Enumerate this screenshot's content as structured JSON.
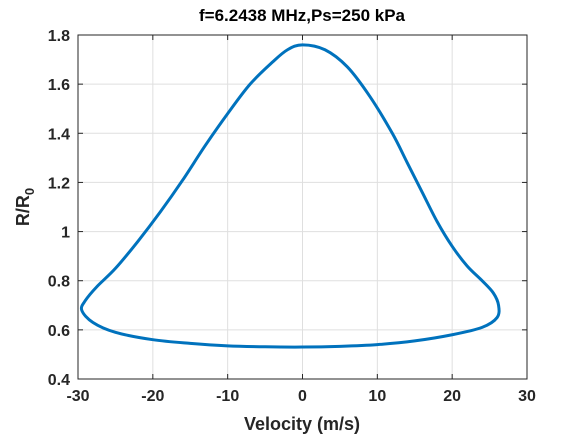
{
  "chart_data": {
    "type": "line",
    "title": "f=6.2438 MHz,Ps=250 kPa",
    "xlabel": "Velocity (m/s)",
    "ylabel_main": "R/R",
    "ylabel_subscript": "0",
    "xlim": [
      -30,
      30
    ],
    "ylim": [
      0.4,
      1.8
    ],
    "xticks": [
      "-30",
      "-20",
      "-10",
      "0",
      "10",
      "20",
      "30"
    ],
    "yticks": [
      "0.4",
      "0.6",
      "0.8",
      "1",
      "1.2",
      "1.4",
      "1.6",
      "1.8"
    ],
    "xtick_values": [
      -30,
      -20,
      -10,
      0,
      10,
      20,
      30
    ],
    "ytick_values": [
      0.4,
      0.6,
      0.8,
      1.0,
      1.2,
      1.4,
      1.6,
      1.8
    ],
    "grid": true,
    "line_color": "#0072bd",
    "series": [
      {
        "x": [
          0,
          3,
          6,
          9,
          12,
          14,
          16,
          18,
          20,
          22,
          24,
          25.5,
          26.2,
          26.0,
          24,
          20,
          15,
          10,
          5,
          0,
          -5,
          -10,
          -15,
          -20,
          -25,
          -28,
          -29.5,
          -29.0,
          -27.5,
          -25,
          -22,
          -19,
          -16,
          -13,
          -10,
          -7,
          -4,
          -2,
          0
        ],
        "y": [
          1.76,
          1.74,
          1.67,
          1.55,
          1.4,
          1.28,
          1.16,
          1.04,
          0.94,
          0.86,
          0.8,
          0.75,
          0.7,
          0.65,
          0.61,
          0.58,
          0.555,
          0.54,
          0.533,
          0.53,
          0.531,
          0.535,
          0.545,
          0.56,
          0.59,
          0.63,
          0.68,
          0.72,
          0.775,
          0.85,
          0.96,
          1.08,
          1.21,
          1.35,
          1.48,
          1.6,
          1.69,
          1.74,
          1.76
        ]
      }
    ]
  }
}
